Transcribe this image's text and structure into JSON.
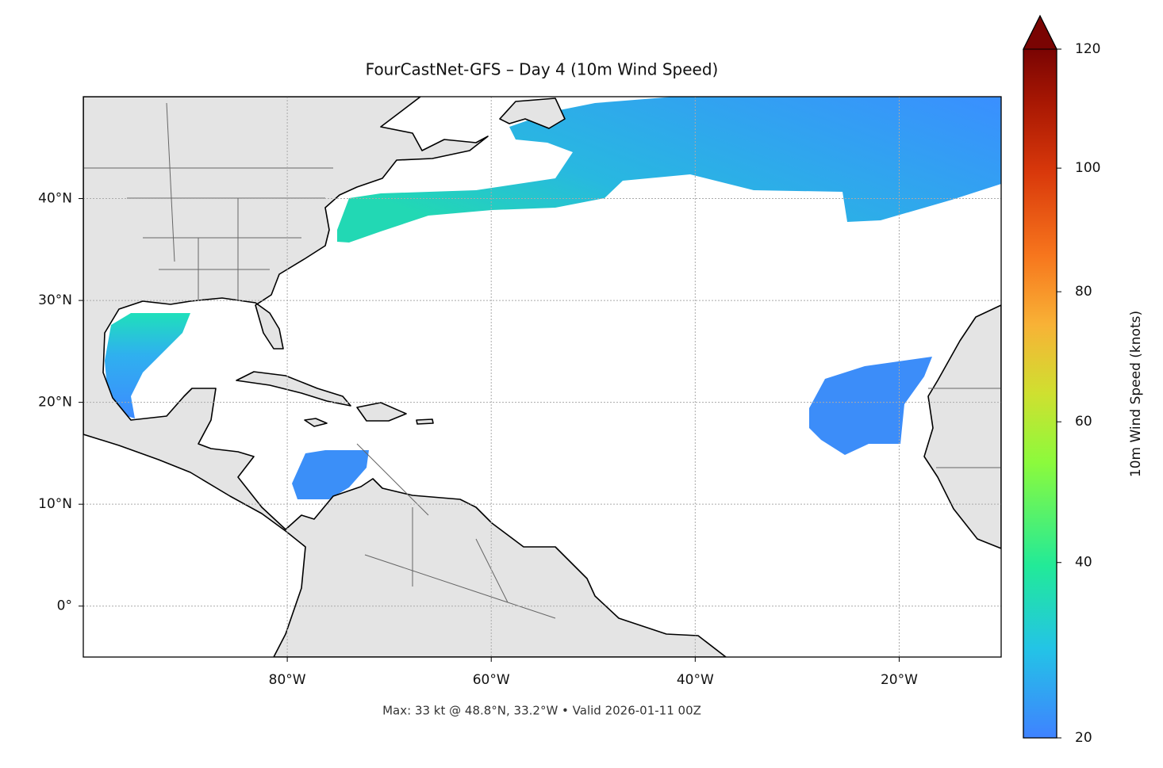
{
  "chart_data": {
    "type": "map",
    "title": "FourCastNet-GFS – Day 4 (10m Wind Speed)",
    "xlim": [
      -100,
      -10
    ],
    "ylim": [
      -5,
      50
    ],
    "xticks": [
      {
        "value": -80,
        "label": "80°W"
      },
      {
        "value": -60,
        "label": "60°W"
      },
      {
        "value": -40,
        "label": "40°W"
      },
      {
        "value": -20,
        "label": "20°W"
      }
    ],
    "yticks": [
      {
        "value": 0,
        "label": "0°"
      },
      {
        "value": 10,
        "label": "10°N"
      },
      {
        "value": 20,
        "label": "20°N"
      },
      {
        "value": 30,
        "label": "30°N"
      },
      {
        "value": 40,
        "label": "40°N"
      }
    ],
    "grid": true,
    "colorbar": {
      "label": "10m Wind Speed (knots)",
      "lim": [
        20,
        120
      ],
      "ticks": [
        20,
        40,
        60,
        80,
        100,
        120
      ],
      "gamma": 0.85,
      "extend": "max"
    },
    "annotation": "Max: 33 kt @ 48.8°N, 33.2°W • Valid 2026-01-11 00Z"
  }
}
